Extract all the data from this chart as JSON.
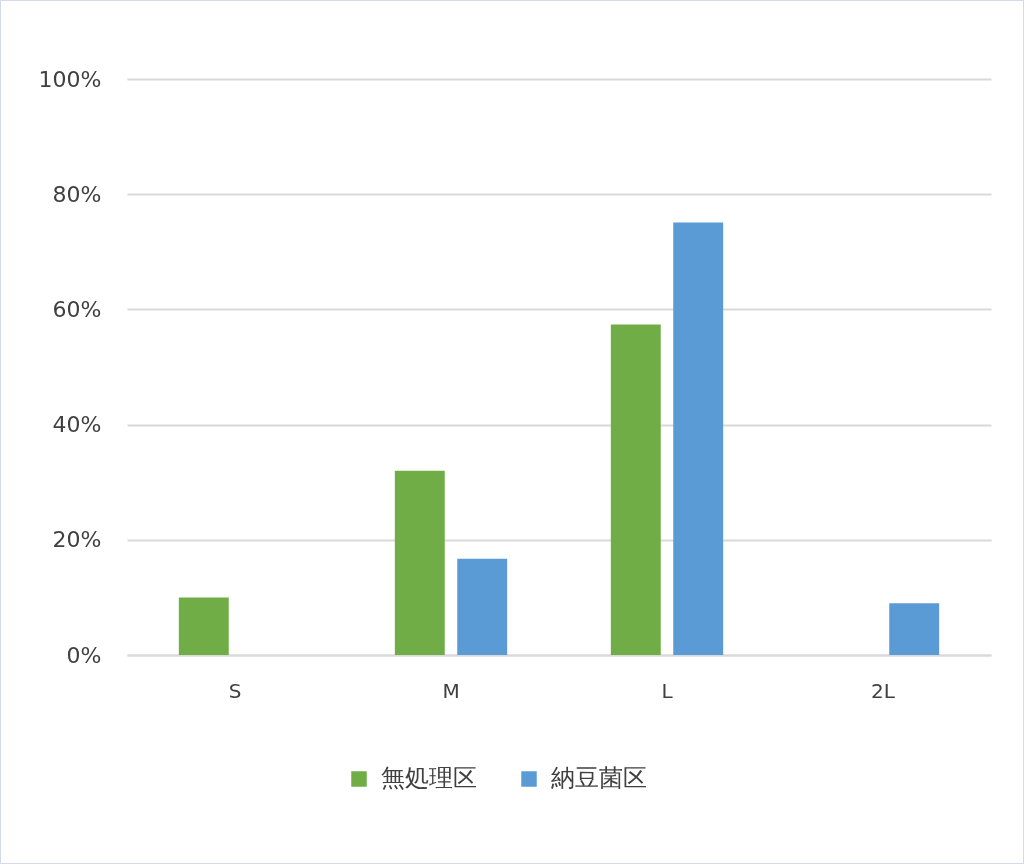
{
  "chart_data": {
    "type": "bar",
    "categories": [
      "S",
      "M",
      "L",
      "2L"
    ],
    "series": [
      {
        "name": "無処理区",
        "color": "#70ad47",
        "values": [
          10,
          32,
          57.4,
          null
        ]
      },
      {
        "name": "納豆菌区",
        "color": "#5b9bd5",
        "values": [
          null,
          16.7,
          75.1,
          9
        ]
      }
    ],
    "ylim": [
      0,
      100
    ],
    "yticks": [
      {
        "value": 0,
        "label": "0%"
      },
      {
        "value": 20,
        "label": "20%"
      },
      {
        "value": 40,
        "label": "40%"
      },
      {
        "value": 60,
        "label": "60%"
      },
      {
        "value": 80,
        "label": "80%"
      },
      {
        "value": 100,
        "label": "100%"
      }
    ],
    "grid": "y",
    "legend": "bottom"
  }
}
